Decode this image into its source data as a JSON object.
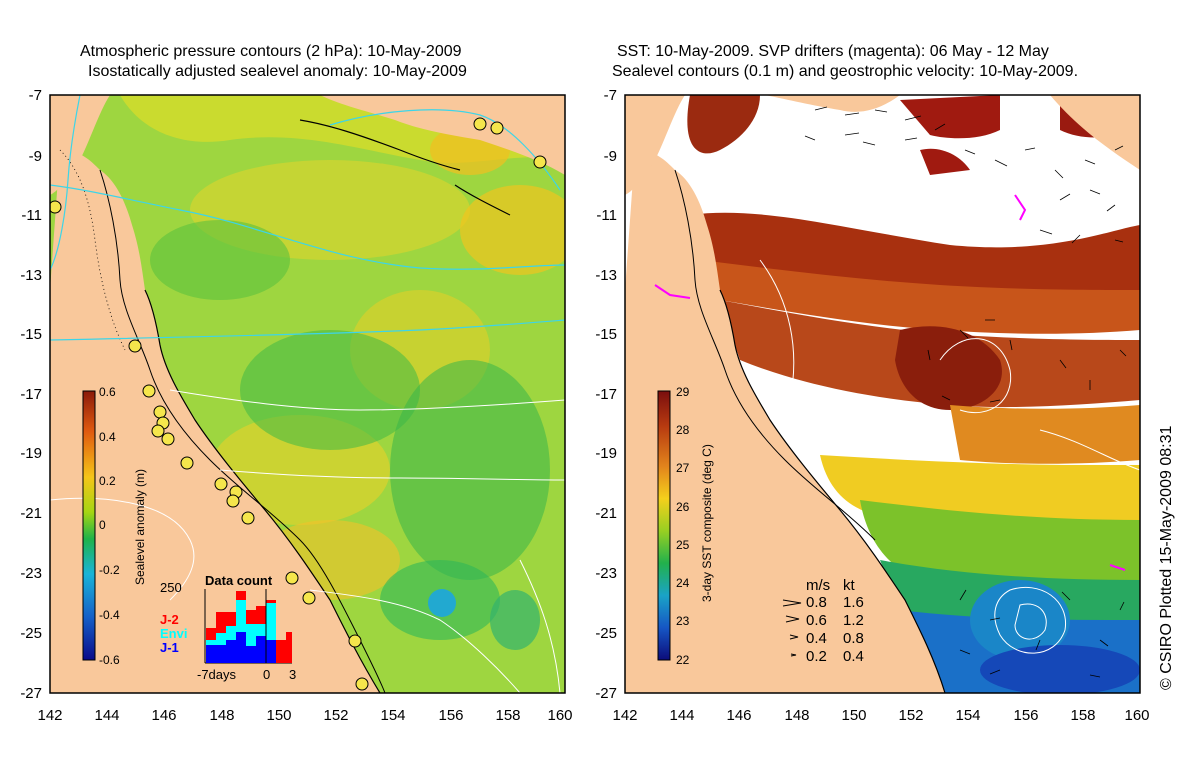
{
  "left_panel": {
    "title_line1": "Atmospheric pressure contours (2 hPa): 10-May-2009",
    "title_line2": "Isostatically adjusted sealevel anomaly: 10-May-2009",
    "colorbar": {
      "label": "Sealevel anomaly (m)",
      "ticks": [
        "0.6",
        "0.4",
        "0.2",
        "0",
        "-0.2",
        "-0.4",
        "-0.6"
      ],
      "stops": [
        "#8b1a0a",
        "#e05a10",
        "#f5c518",
        "#a6d613",
        "#1fb34a",
        "#19b4d8",
        "#1560c8",
        "#0a0a8a"
      ]
    },
    "data_count": {
      "title": "Data count",
      "max_label": "250",
      "x_labels": [
        "-7days",
        "0",
        "3"
      ],
      "series": [
        {
          "name": "J-2",
          "color": "#ff0000"
        },
        {
          "name": "Envi",
          "color": "#00ffff"
        },
        {
          "name": "J-1",
          "color": "#0000ff"
        }
      ]
    },
    "land_color": "#f9c89b",
    "ocean_color": "#9ed640"
  },
  "right_panel": {
    "title_line1": "SST: 10-May-2009. SVP drifters (magenta): 06 May - 12 May",
    "title_line2": "Sealevel contours (0.1 m) and geostrophic velocity: 10-May-2009.",
    "colorbar": {
      "label": "3-day SST composite (deg C)",
      "ticks": [
        "29",
        "28",
        "27",
        "26",
        "25",
        "24",
        "23",
        "22"
      ],
      "stops": [
        "#7a0e0e",
        "#b73a10",
        "#e2841c",
        "#f4d01c",
        "#98cf22",
        "#22b14c",
        "#1aa3c7",
        "#1656c4",
        "#0c0c7a"
      ]
    },
    "velocity_legend": {
      "unit_ms": "m/s",
      "unit_kt": "kt",
      "rows": [
        {
          "ms": "0.8",
          "kt": "1.6"
        },
        {
          "ms": "0.6",
          "kt": "1.2"
        },
        {
          "ms": "0.4",
          "kt": "0.8"
        },
        {
          "ms": "0.2",
          "kt": "0.4"
        }
      ]
    }
  },
  "axes": {
    "y_labels": [
      "-7",
      "-9",
      "-11",
      "-13",
      "-15",
      "-17",
      "-19",
      "-21",
      "-23",
      "-25",
      "-27"
    ],
    "x_labels": [
      "142",
      "144",
      "146",
      "148",
      "150",
      "152",
      "154",
      "156",
      "158",
      "160"
    ]
  },
  "credit": "© CSIRO Plotted 15-May-2009 08:31"
}
